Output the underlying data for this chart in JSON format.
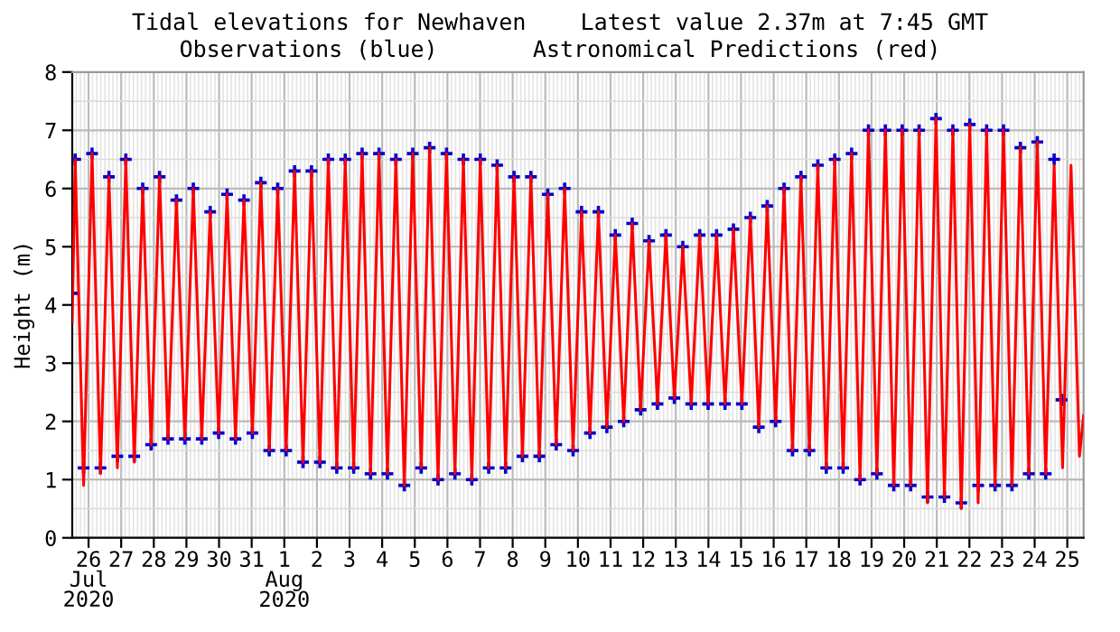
{
  "chart_data": {
    "type": "line",
    "title": "Tidal elevations for Newhaven    Latest value 2.37m at 7:45 GMT",
    "subtitle": "Observations (blue)       Astronomical Predictions (red)",
    "ylabel": "Height (m)",
    "xlim": [
      "2020-07-26T00:00",
      "2020-08-26T00:00"
    ],
    "ylim": [
      0,
      8
    ],
    "yticks": [
      0,
      1,
      2,
      3,
      4,
      5,
      6,
      7,
      8
    ],
    "xticks": [
      {
        "value": "2020-07-26T12:00",
        "label": "26\nJul\n2020"
      },
      {
        "value": "2020-07-27T12:00",
        "label": "27"
      },
      {
        "value": "2020-07-28T12:00",
        "label": "28"
      },
      {
        "value": "2020-07-29T12:00",
        "label": "29"
      },
      {
        "value": "2020-07-30T12:00",
        "label": "30"
      },
      {
        "value": "2020-07-31T12:00",
        "label": "31"
      },
      {
        "value": "2020-08-01T12:00",
        "label": "1\nAug\n2020"
      },
      {
        "value": "2020-08-02T12:00",
        "label": "2"
      },
      {
        "value": "2020-08-03T12:00",
        "label": "3"
      },
      {
        "value": "2020-08-04T12:00",
        "label": "4"
      },
      {
        "value": "2020-08-05T12:00",
        "label": "5"
      },
      {
        "value": "2020-08-06T12:00",
        "label": "6"
      },
      {
        "value": "2020-08-07T12:00",
        "label": "7"
      },
      {
        "value": "2020-08-08T12:00",
        "label": "8"
      },
      {
        "value": "2020-08-09T12:00",
        "label": "9"
      },
      {
        "value": "2020-08-10T12:00",
        "label": "10"
      },
      {
        "value": "2020-08-11T12:00",
        "label": "11"
      },
      {
        "value": "2020-08-12T12:00",
        "label": "12"
      },
      {
        "value": "2020-08-13T12:00",
        "label": "13"
      },
      {
        "value": "2020-08-14T12:00",
        "label": "14"
      },
      {
        "value": "2020-08-15T12:00",
        "label": "15"
      },
      {
        "value": "2020-08-16T12:00",
        "label": "16"
      },
      {
        "value": "2020-08-17T12:00",
        "label": "17"
      },
      {
        "value": "2020-08-18T12:00",
        "label": "18"
      },
      {
        "value": "2020-08-19T12:00",
        "label": "19"
      },
      {
        "value": "2020-08-20T12:00",
        "label": "20"
      },
      {
        "value": "2020-08-21T12:00",
        "label": "21"
      },
      {
        "value": "2020-08-22T12:00",
        "label": "22"
      },
      {
        "value": "2020-08-23T12:00",
        "label": "23"
      },
      {
        "value": "2020-08-24T12:00",
        "label": "24"
      },
      {
        "value": "2020-08-25T12:00",
        "label": "25"
      }
    ],
    "grid": true,
    "series": [
      {
        "type": "scatter",
        "color": "#0000cc",
        "marker": "cross",
        "x": [
          "2020-07-26T00:00",
          "2020-07-26T02:10",
          "2020-07-26T08:22",
          "2020-07-26T14:35",
          "2020-07-26T20:47",
          "2020-07-27T03:00",
          "2020-07-27T09:12",
          "2020-07-27T15:25",
          "2020-07-27T21:37",
          "2020-07-28T03:50",
          "2020-07-28T10:02",
          "2020-07-28T16:15",
          "2020-07-28T22:27",
          "2020-07-29T04:40",
          "2020-07-29T10:52",
          "2020-07-29T17:05",
          "2020-07-29T23:17",
          "2020-07-30T05:30",
          "2020-07-30T11:42",
          "2020-07-30T17:55",
          "2020-07-31T00:07",
          "2020-07-31T06:20",
          "2020-07-31T12:32",
          "2020-07-31T18:45",
          "2020-08-01T00:57",
          "2020-08-01T07:10",
          "2020-08-01T13:22",
          "2020-08-01T19:35",
          "2020-08-02T01:47",
          "2020-08-02T08:00",
          "2020-08-02T14:12",
          "2020-08-02T20:25",
          "2020-08-03T02:37",
          "2020-08-03T08:50",
          "2020-08-03T15:02",
          "2020-08-03T21:15",
          "2020-08-04T03:27",
          "2020-08-04T09:40",
          "2020-08-04T15:52",
          "2020-08-04T22:05",
          "2020-08-05T04:17",
          "2020-08-05T10:30",
          "2020-08-05T16:42",
          "2020-08-05T22:55",
          "2020-08-06T05:07",
          "2020-08-06T11:20",
          "2020-08-06T17:32",
          "2020-08-06T23:45",
          "2020-08-07T05:57",
          "2020-08-07T12:10",
          "2020-08-07T18:22",
          "2020-08-08T00:35",
          "2020-08-08T06:47",
          "2020-08-08T13:00",
          "2020-08-08T19:12",
          "2020-08-09T01:25",
          "2020-08-09T07:37",
          "2020-08-09T13:50",
          "2020-08-09T20:02",
          "2020-08-10T02:15",
          "2020-08-10T08:27",
          "2020-08-10T14:40",
          "2020-08-10T20:52",
          "2020-08-11T03:05",
          "2020-08-11T09:17",
          "2020-08-11T15:30",
          "2020-08-11T21:42",
          "2020-08-12T03:55",
          "2020-08-12T10:07",
          "2020-08-12T16:20",
          "2020-08-12T22:32",
          "2020-08-13T04:45",
          "2020-08-13T10:57",
          "2020-08-13T17:10",
          "2020-08-13T23:22",
          "2020-08-14T05:35",
          "2020-08-14T11:47",
          "2020-08-14T18:00",
          "2020-08-15T00:12",
          "2020-08-15T06:25",
          "2020-08-15T12:37",
          "2020-08-15T18:50",
          "2020-08-16T01:02",
          "2020-08-16T07:15",
          "2020-08-16T13:27",
          "2020-08-16T19:40",
          "2020-08-17T01:52",
          "2020-08-17T08:05",
          "2020-08-17T14:17",
          "2020-08-17T20:30",
          "2020-08-18T02:42",
          "2020-08-18T08:55",
          "2020-08-18T15:07",
          "2020-08-18T21:20",
          "2020-08-19T03:32",
          "2020-08-19T09:45",
          "2020-08-19T15:57",
          "2020-08-19T22:10",
          "2020-08-20T04:22",
          "2020-08-20T10:35",
          "2020-08-20T16:47",
          "2020-08-20T23:00",
          "2020-08-21T05:12",
          "2020-08-21T11:25",
          "2020-08-21T17:37",
          "2020-08-21T23:50",
          "2020-08-22T06:02",
          "2020-08-22T12:15",
          "2020-08-22T18:27",
          "2020-08-23T00:40",
          "2020-08-23T06:52",
          "2020-08-23T13:05",
          "2020-08-23T19:17",
          "2020-08-24T01:30",
          "2020-08-24T07:42",
          "2020-08-24T13:55",
          "2020-08-24T20:07",
          "2020-08-25T02:20",
          "2020-08-25T07:45"
        ],
        "values": [
          4.2,
          6.5,
          1.2,
          6.6,
          1.2,
          6.2,
          1.4,
          6.5,
          1.4,
          6.0,
          1.6,
          6.2,
          1.7,
          5.8,
          1.7,
          6.0,
          1.7,
          5.6,
          1.8,
          5.9,
          1.7,
          5.8,
          1.8,
          6.1,
          1.5,
          6.0,
          1.5,
          6.3,
          1.3,
          6.3,
          1.3,
          6.5,
          1.2,
          6.5,
          1.2,
          6.6,
          1.1,
          6.6,
          1.1,
          6.5,
          0.9,
          6.6,
          1.2,
          6.7,
          1.0,
          6.6,
          1.1,
          6.5,
          1.0,
          6.5,
          1.2,
          6.4,
          1.2,
          6.2,
          1.4,
          6.2,
          1.4,
          5.9,
          1.6,
          6.0,
          1.5,
          5.6,
          1.8,
          5.6,
          1.9,
          5.2,
          2.0,
          5.4,
          2.2,
          5.1,
          2.3,
          5.2,
          2.4,
          5.0,
          2.3,
          5.2,
          2.3,
          5.2,
          2.3,
          5.3,
          2.3,
          5.5,
          1.9,
          5.7,
          2.0,
          6.0,
          1.5,
          6.2,
          1.5,
          6.4,
          1.2,
          6.5,
          1.2,
          6.6,
          1.0,
          7.0,
          1.1,
          7.0,
          0.9,
          7.0,
          0.9,
          7.0,
          0.7,
          7.2,
          0.7,
          7.0,
          0.6,
          7.1,
          0.9,
          7.0,
          0.9,
          7.0,
          0.9,
          6.7,
          1.1,
          6.8,
          1.1,
          6.5,
          2.37
        ]
      },
      {
        "color": "#ff0000",
        "marker": "none",
        "x": [
          "2020-07-26T00:00",
          "2020-07-26T02:10",
          "2020-07-26T08:22",
          "2020-07-26T14:35",
          "2020-07-26T20:47",
          "2020-07-27T03:00",
          "2020-07-27T09:12",
          "2020-07-27T15:25",
          "2020-07-27T21:37",
          "2020-07-28T03:50",
          "2020-07-28T10:02",
          "2020-07-28T16:15",
          "2020-07-28T22:27",
          "2020-07-29T04:40",
          "2020-07-29T10:52",
          "2020-07-29T17:05",
          "2020-07-29T23:17",
          "2020-07-30T05:30",
          "2020-07-30T11:42",
          "2020-07-30T17:55",
          "2020-07-31T00:07",
          "2020-07-31T06:20",
          "2020-07-31T12:32",
          "2020-07-31T18:45",
          "2020-08-01T00:57",
          "2020-08-01T07:10",
          "2020-08-01T13:22",
          "2020-08-01T19:35",
          "2020-08-02T01:47",
          "2020-08-02T08:00",
          "2020-08-02T14:12",
          "2020-08-02T20:25",
          "2020-08-03T02:37",
          "2020-08-03T08:50",
          "2020-08-03T15:02",
          "2020-08-03T21:15",
          "2020-08-04T03:27",
          "2020-08-04T09:40",
          "2020-08-04T15:52",
          "2020-08-04T22:05",
          "2020-08-05T04:17",
          "2020-08-05T10:30",
          "2020-08-05T16:42",
          "2020-08-05T22:55",
          "2020-08-06T05:07",
          "2020-08-06T11:20",
          "2020-08-06T17:32",
          "2020-08-06T23:45",
          "2020-08-07T05:57",
          "2020-08-07T12:10",
          "2020-08-07T18:22",
          "2020-08-08T00:35",
          "2020-08-08T06:47",
          "2020-08-08T13:00",
          "2020-08-08T19:12",
          "2020-08-09T01:25",
          "2020-08-09T07:37",
          "2020-08-09T13:50",
          "2020-08-09T20:02",
          "2020-08-10T02:15",
          "2020-08-10T08:27",
          "2020-08-10T14:40",
          "2020-08-10T20:52",
          "2020-08-11T03:05",
          "2020-08-11T09:17",
          "2020-08-11T15:30",
          "2020-08-11T21:42",
          "2020-08-12T03:55",
          "2020-08-12T10:07",
          "2020-08-12T16:20",
          "2020-08-12T22:32",
          "2020-08-13T04:45",
          "2020-08-13T10:57",
          "2020-08-13T17:10",
          "2020-08-13T23:22",
          "2020-08-14T05:35",
          "2020-08-14T11:47",
          "2020-08-14T18:00",
          "2020-08-15T00:12",
          "2020-08-15T06:25",
          "2020-08-15T12:37",
          "2020-08-15T18:50",
          "2020-08-16T01:02",
          "2020-08-16T07:15",
          "2020-08-16T13:27",
          "2020-08-16T19:40",
          "2020-08-17T01:52",
          "2020-08-17T08:05",
          "2020-08-17T14:17",
          "2020-08-17T20:30",
          "2020-08-18T02:42",
          "2020-08-18T08:55",
          "2020-08-18T15:07",
          "2020-08-18T21:20",
          "2020-08-19T03:32",
          "2020-08-19T09:45",
          "2020-08-19T15:57",
          "2020-08-19T22:10",
          "2020-08-20T04:22",
          "2020-08-20T10:35",
          "2020-08-20T16:47",
          "2020-08-20T23:00",
          "2020-08-21T05:12",
          "2020-08-21T11:25",
          "2020-08-21T17:37",
          "2020-08-21T23:50",
          "2020-08-22T06:02",
          "2020-08-22T12:15",
          "2020-08-22T18:27",
          "2020-08-23T00:40",
          "2020-08-23T06:52",
          "2020-08-23T13:05",
          "2020-08-23T19:17",
          "2020-08-24T01:30",
          "2020-08-24T07:42",
          "2020-08-24T13:55",
          "2020-08-24T20:07",
          "2020-08-25T02:20",
          "2020-08-25T08:32",
          "2020-08-25T14:45",
          "2020-08-25T20:57",
          "2020-08-26T00:00"
        ],
        "values": [
          3.7,
          6.5,
          0.9,
          6.6,
          1.1,
          6.2,
          1.2,
          6.5,
          1.3,
          6.0,
          1.6,
          6.2,
          1.7,
          5.8,
          1.7,
          6.0,
          1.7,
          5.6,
          1.8,
          5.9,
          1.7,
          5.8,
          1.8,
          6.1,
          1.5,
          6.0,
          1.5,
          6.3,
          1.3,
          6.3,
          1.3,
          6.5,
          1.2,
          6.5,
          1.2,
          6.6,
          1.1,
          6.6,
          1.1,
          6.5,
          0.9,
          6.6,
          1.2,
          6.7,
          1.0,
          6.6,
          1.1,
          6.5,
          1.0,
          6.5,
          1.2,
          6.4,
          1.2,
          6.2,
          1.4,
          6.2,
          1.4,
          5.9,
          1.6,
          6.0,
          1.5,
          5.6,
          1.8,
          5.6,
          1.9,
          5.2,
          2.0,
          5.4,
          2.2,
          5.1,
          2.3,
          5.2,
          2.4,
          5.0,
          2.3,
          5.2,
          2.3,
          5.2,
          2.3,
          5.3,
          2.3,
          5.5,
          1.9,
          5.7,
          2.0,
          6.0,
          1.5,
          6.2,
          1.5,
          6.4,
          1.2,
          6.5,
          1.2,
          6.6,
          1.0,
          7.0,
          1.1,
          7.0,
          0.9,
          7.0,
          0.9,
          7.0,
          0.6,
          7.2,
          0.7,
          7.0,
          0.5,
          7.1,
          0.6,
          7.0,
          0.9,
          7.0,
          0.9,
          6.7,
          1.1,
          6.8,
          1.1,
          6.4,
          1.2,
          6.4,
          1.4,
          2.1
        ]
      }
    ]
  }
}
